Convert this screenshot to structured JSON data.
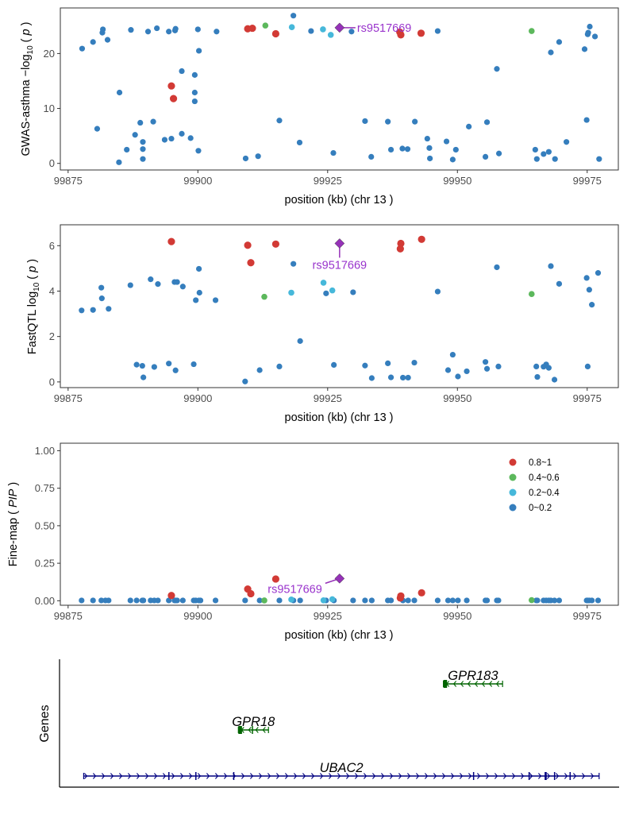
{
  "colors": {
    "r0": "#d23a35",
    "r1": "#5cb85c",
    "r2": "#46b8da",
    "r3": "#357ebd",
    "lead": "#9632b8",
    "gene_green": "#006400",
    "gene_navy": "#000080"
  },
  "legend": [
    "0.8~1",
    "0.4~0.6",
    "0.2~0.4",
    "0~0.2"
  ],
  "lead_snp": {
    "name": "rs9517669",
    "pos": 99927.3,
    "gwas": 24.7,
    "qtl": 6.1,
    "pip": 0.148
  },
  "chart_data": [
    {
      "type": "scatter",
      "xlabel": "position (kb) (chr 13 )",
      "ylabel": "GWAS-asthma −log₁₀ ( p )",
      "xlim": [
        99873.5,
        99981
      ],
      "ylim": [
        -1.2,
        28.3
      ],
      "xticks": [
        99875,
        99900,
        99925,
        99950,
        99975
      ],
      "yticks": [
        0,
        10,
        20
      ],
      "grid": false,
      "points": [
        [
          99877.7,
          20.9,
          3
        ],
        [
          99879.8,
          22.1,
          3
        ],
        [
          99880.6,
          6.3,
          3
        ],
        [
          99881.6,
          23.8,
          3
        ],
        [
          99881.7,
          24.4,
          3
        ],
        [
          99882.6,
          22.5,
          3
        ],
        [
          99884.8,
          0.2,
          3
        ],
        [
          99884.9,
          12.9,
          3
        ],
        [
          99886.3,
          2.5,
          3
        ],
        [
          99887.1,
          24.3,
          3
        ],
        [
          99887.9,
          5.2,
          3
        ],
        [
          99888.9,
          7.4,
          3
        ],
        [
          99889.4,
          0.8,
          3
        ],
        [
          99889.4,
          2.6,
          3
        ],
        [
          99889.4,
          3.9,
          3
        ],
        [
          99890.4,
          24.0,
          3
        ],
        [
          99891.4,
          7.6,
          3
        ],
        [
          99892.1,
          24.6,
          3
        ],
        [
          99893.6,
          4.3,
          3
        ],
        [
          99894.4,
          24.0,
          3
        ],
        [
          99894.9,
          4.5,
          3
        ],
        [
          99895.6,
          24.2,
          3
        ],
        [
          99895.7,
          24.5,
          3
        ],
        [
          99896.9,
          16.8,
          3
        ],
        [
          99896.9,
          5.4,
          3
        ],
        [
          99898.6,
          4.6,
          3
        ],
        [
          99899.4,
          12.9,
          3
        ],
        [
          99899.4,
          16.1,
          3
        ],
        [
          99899.4,
          11.3,
          3
        ],
        [
          99900.0,
          24.4,
          3
        ],
        [
          99900.1,
          2.3,
          3
        ],
        [
          99900.2,
          20.5,
          3
        ],
        [
          99903.6,
          24.0,
          3
        ],
        [
          99909.2,
          0.9,
          3
        ],
        [
          99911.6,
          1.3,
          3
        ],
        [
          99915.7,
          7.8,
          3
        ],
        [
          99918.4,
          26.9,
          3
        ],
        [
          99919.6,
          3.8,
          3
        ],
        [
          99921.8,
          24.1,
          3
        ],
        [
          99926.1,
          1.9,
          3
        ],
        [
          99929.6,
          24.0,
          3
        ],
        [
          99932.2,
          7.7,
          3
        ],
        [
          99933.4,
          1.2,
          3
        ],
        [
          99936.6,
          7.6,
          3
        ],
        [
          99937.2,
          2.5,
          3
        ],
        [
          99939.4,
          2.7,
          3
        ],
        [
          99940.4,
          2.6,
          3
        ],
        [
          99941.8,
          7.6,
          3
        ],
        [
          99944.2,
          4.5,
          3
        ],
        [
          99944.6,
          2.8,
          3
        ],
        [
          99944.7,
          0.9,
          3
        ],
        [
          99946.2,
          24.1,
          3
        ],
        [
          99947.9,
          4.0,
          3
        ],
        [
          99949.1,
          0.7,
          3
        ],
        [
          99949.7,
          2.5,
          3
        ],
        [
          99952.2,
          6.7,
          3
        ],
        [
          99955.4,
          1.2,
          3
        ],
        [
          99955.7,
          7.5,
          3
        ],
        [
          99957.6,
          17.2,
          3
        ],
        [
          99958.0,
          1.8,
          3
        ],
        [
          99965.0,
          2.5,
          3
        ],
        [
          99965.3,
          0.8,
          3
        ],
        [
          99966.6,
          1.7,
          3
        ],
        [
          99967.6,
          2.1,
          3
        ],
        [
          99968.0,
          20.2,
          3
        ],
        [
          99968.8,
          0.8,
          3
        ],
        [
          99969.6,
          22.1,
          3
        ],
        [
          99971.0,
          3.9,
          3
        ],
        [
          99974.5,
          20.8,
          3
        ],
        [
          99974.9,
          7.9,
          3
        ],
        [
          99975.1,
          23.5,
          3
        ],
        [
          99975.2,
          23.8,
          3
        ],
        [
          99975.5,
          24.9,
          3
        ],
        [
          99976.5,
          23.1,
          3
        ],
        [
          99977.3,
          0.8,
          3
        ],
        [
          99918.1,
          24.8,
          2
        ],
        [
          99924.1,
          24.4,
          2
        ],
        [
          99925.6,
          23.4,
          2
        ],
        [
          99913.0,
          25.1,
          1
        ],
        [
          99964.3,
          24.1,
          1
        ],
        [
          99894.9,
          14.1,
          0
        ],
        [
          99895.3,
          11.8,
          0
        ],
        [
          99909.6,
          24.5,
          0
        ],
        [
          99910.5,
          24.6,
          0
        ],
        [
          99915.0,
          23.6,
          0
        ],
        [
          99938.9,
          23.9,
          0
        ],
        [
          99939.1,
          23.4,
          0
        ],
        [
          99943.0,
          23.7,
          0
        ]
      ]
    },
    {
      "type": "scatter",
      "xlabel": "position (kb) (chr 13 )",
      "ylabel": "FastQTL log₁₀ ( p )",
      "xlim": [
        99873.5,
        99981
      ],
      "ylim": [
        -0.25,
        6.92
      ],
      "xticks": [
        99875,
        99900,
        99925,
        99950,
        99975
      ],
      "yticks": [
        0,
        2,
        4,
        6
      ],
      "grid": false,
      "points": [
        [
          99877.6,
          3.15,
          3
        ],
        [
          99879.8,
          3.17,
          3
        ],
        [
          99881.4,
          4.15,
          3
        ],
        [
          99881.5,
          3.68,
          3
        ],
        [
          99882.8,
          3.22,
          3
        ],
        [
          99887.0,
          4.26,
          3
        ],
        [
          99888.2,
          0.76,
          3
        ],
        [
          99889.3,
          0.71,
          3
        ],
        [
          99889.5,
          0.2,
          3
        ],
        [
          99890.9,
          4.52,
          3
        ],
        [
          99891.6,
          0.66,
          3
        ],
        [
          99892.3,
          4.31,
          3
        ],
        [
          99894.4,
          0.81,
          3
        ],
        [
          99895.5,
          4.4,
          3
        ],
        [
          99895.7,
          0.51,
          3
        ],
        [
          99896.0,
          4.4,
          3
        ],
        [
          99897.1,
          4.2,
          3
        ],
        [
          99899.2,
          0.78,
          3
        ],
        [
          99899.6,
          3.6,
          3
        ],
        [
          99900.2,
          4.98,
          3
        ],
        [
          99900.3,
          3.93,
          3
        ],
        [
          99903.4,
          3.6,
          3
        ],
        [
          99909.1,
          0.02,
          3
        ],
        [
          99911.9,
          0.52,
          3
        ],
        [
          99915.7,
          0.68,
          3
        ],
        [
          99918.4,
          5.2,
          3
        ],
        [
          99919.7,
          1.8,
          3
        ],
        [
          99924.7,
          3.9,
          3
        ],
        [
          99926.2,
          0.75,
          3
        ],
        [
          99929.9,
          3.95,
          3
        ],
        [
          99932.2,
          0.72,
          3
        ],
        [
          99933.5,
          0.17,
          3
        ],
        [
          99936.6,
          0.82,
          3
        ],
        [
          99937.2,
          0.2,
          3
        ],
        [
          99939.5,
          0.19,
          3
        ],
        [
          99940.5,
          0.19,
          3
        ],
        [
          99941.7,
          0.85,
          3
        ],
        [
          99946.2,
          3.98,
          3
        ],
        [
          99948.2,
          0.52,
          3
        ],
        [
          99949.1,
          1.2,
          3
        ],
        [
          99950.1,
          0.24,
          3
        ],
        [
          99951.8,
          0.47,
          3
        ],
        [
          99955.4,
          0.88,
          3
        ],
        [
          99955.7,
          0.58,
          3
        ],
        [
          99957.6,
          5.05,
          3
        ],
        [
          99957.9,
          0.68,
          3
        ],
        [
          99965.2,
          0.68,
          3
        ],
        [
          99965.4,
          0.22,
          3
        ],
        [
          99966.6,
          0.67,
          3
        ],
        [
          99967.1,
          0.77,
          3
        ],
        [
          99967.6,
          0.62,
          3
        ],
        [
          99968.0,
          5.1,
          3
        ],
        [
          99968.7,
          0.1,
          3
        ],
        [
          99969.6,
          4.32,
          3
        ],
        [
          99974.9,
          4.58,
          3
        ],
        [
          99975.1,
          0.68,
          3
        ],
        [
          99975.4,
          4.06,
          3
        ],
        [
          99975.9,
          3.4,
          3
        ],
        [
          99977.1,
          4.8,
          3
        ],
        [
          99918.0,
          3.93,
          2
        ],
        [
          99924.2,
          4.37,
          2
        ],
        [
          99925.9,
          4.03,
          2
        ],
        [
          99912.8,
          3.75,
          1
        ],
        [
          99964.3,
          3.87,
          1
        ],
        [
          99894.9,
          6.18,
          0
        ],
        [
          99909.6,
          6.02,
          0
        ],
        [
          99910.2,
          5.25,
          0
        ],
        [
          99915.0,
          6.07,
          0
        ],
        [
          99939.1,
          6.1,
          0
        ],
        [
          99939.0,
          5.86,
          0
        ],
        [
          99943.1,
          6.28,
          0
        ]
      ]
    },
    {
      "type": "scatter",
      "xlabel": "position (kb) (chr 13 )",
      "ylabel": "Fine-map ( PIP )",
      "xlim": [
        99873.5,
        99981
      ],
      "ylim": [
        -0.03,
        1.05
      ],
      "xticks": [
        99875,
        99900,
        99925,
        99950,
        99975
      ],
      "yticks": [
        0.0,
        0.25,
        0.5,
        0.75,
        1.0
      ],
      "grid": false,
      "legend_position": "top-right",
      "points": [
        [
          99877.6,
          0.002,
          3
        ],
        [
          99879.8,
          0.002,
          3
        ],
        [
          99881.4,
          0.002,
          3
        ],
        [
          99882.2,
          0.002,
          3
        ],
        [
          99882.8,
          0.002,
          3
        ],
        [
          99887.0,
          0.002,
          3
        ],
        [
          99888.2,
          0.002,
          3
        ],
        [
          99889.3,
          0.002,
          3
        ],
        [
          99889.5,
          0.002,
          3
        ],
        [
          99890.9,
          0.002,
          3
        ],
        [
          99891.6,
          0.002,
          3
        ],
        [
          99892.3,
          0.002,
          3
        ],
        [
          99894.4,
          0.002,
          3
        ],
        [
          99895.5,
          0.002,
          3
        ],
        [
          99895.7,
          0.002,
          3
        ],
        [
          99896.0,
          0.002,
          3
        ],
        [
          99897.1,
          0.002,
          3
        ],
        [
          99899.2,
          0.002,
          3
        ],
        [
          99899.6,
          0.002,
          3
        ],
        [
          99900.2,
          0.002,
          3
        ],
        [
          99900.5,
          0.002,
          3
        ],
        [
          99903.4,
          0.002,
          3
        ],
        [
          99909.1,
          0.002,
          3
        ],
        [
          99911.9,
          0.002,
          3
        ],
        [
          99915.7,
          0.002,
          3
        ],
        [
          99918.4,
          0.002,
          3
        ],
        [
          99919.7,
          0.002,
          3
        ],
        [
          99924.7,
          0.002,
          3
        ],
        [
          99926.2,
          0.002,
          3
        ],
        [
          99929.9,
          0.002,
          3
        ],
        [
          99932.2,
          0.002,
          3
        ],
        [
          99933.5,
          0.002,
          3
        ],
        [
          99936.6,
          0.002,
          3
        ],
        [
          99937.2,
          0.002,
          3
        ],
        [
          99939.5,
          0.002,
          3
        ],
        [
          99940.5,
          0.002,
          3
        ],
        [
          99941.7,
          0.002,
          3
        ],
        [
          99946.2,
          0.002,
          3
        ],
        [
          99948.2,
          0.002,
          3
        ],
        [
          99949.1,
          0.002,
          3
        ],
        [
          99950.1,
          0.002,
          3
        ],
        [
          99951.8,
          0.002,
          3
        ],
        [
          99955.4,
          0.002,
          3
        ],
        [
          99955.7,
          0.002,
          3
        ],
        [
          99957.6,
          0.002,
          3
        ],
        [
          99957.9,
          0.002,
          3
        ],
        [
          99965.2,
          0.002,
          3
        ],
        [
          99965.4,
          0.002,
          3
        ],
        [
          99966.6,
          0.002,
          3
        ],
        [
          99967.1,
          0.002,
          3
        ],
        [
          99967.6,
          0.002,
          3
        ],
        [
          99968.0,
          0.002,
          3
        ],
        [
          99968.7,
          0.002,
          3
        ],
        [
          99969.6,
          0.002,
          3
        ],
        [
          99974.9,
          0.002,
          3
        ],
        [
          99975.1,
          0.002,
          3
        ],
        [
          99975.4,
          0.002,
          3
        ],
        [
          99975.9,
          0.002,
          3
        ],
        [
          99977.1,
          0.002,
          3
        ],
        [
          99918.0,
          0.008,
          2
        ],
        [
          99924.2,
          0.003,
          2
        ],
        [
          99925.9,
          0.01,
          2
        ],
        [
          99912.8,
          0.002,
          1
        ],
        [
          99964.3,
          0.004,
          1
        ],
        [
          99894.9,
          0.035,
          0
        ],
        [
          99909.6,
          0.078,
          0
        ],
        [
          99910.2,
          0.047,
          0
        ],
        [
          99915.0,
          0.145,
          0
        ],
        [
          99939.1,
          0.032,
          0
        ],
        [
          99939.0,
          0.018,
          0
        ],
        [
          99943.1,
          0.053,
          0
        ]
      ]
    },
    {
      "type": "gene-track",
      "ylabel": "Genes",
      "genes": [
        {
          "name": "GPR183",
          "start": 99947.3,
          "end": 99958.7,
          "row": 2,
          "strand": "-",
          "exons": [
            [
              99947.3,
              99948.0
            ]
          ]
        },
        {
          "name": "GPR18",
          "start": 99907.8,
          "end": 99913.6,
          "row": 1,
          "strand": "-",
          "exons": [
            [
              99907.8,
              99908.5
            ],
            [
              99910.4,
              99910.6
            ]
          ]
        },
        {
          "name": "UBAC2",
          "start": 99878.0,
          "end": 99977.3,
          "row": 0,
          "strand": "+",
          "exons": [
            [
              99894.3,
              99894.4
            ],
            [
              99899.5,
              99899.6
            ],
            [
              99906.8,
              99906.9
            ],
            [
              99953.0,
              99953.1
            ],
            [
              99963.7,
              99963.8
            ],
            [
              99966.8,
              99967.2
            ],
            [
              99968.6,
              99968.7
            ],
            [
              99971.6,
              99971.7
            ]
          ]
        }
      ]
    }
  ]
}
